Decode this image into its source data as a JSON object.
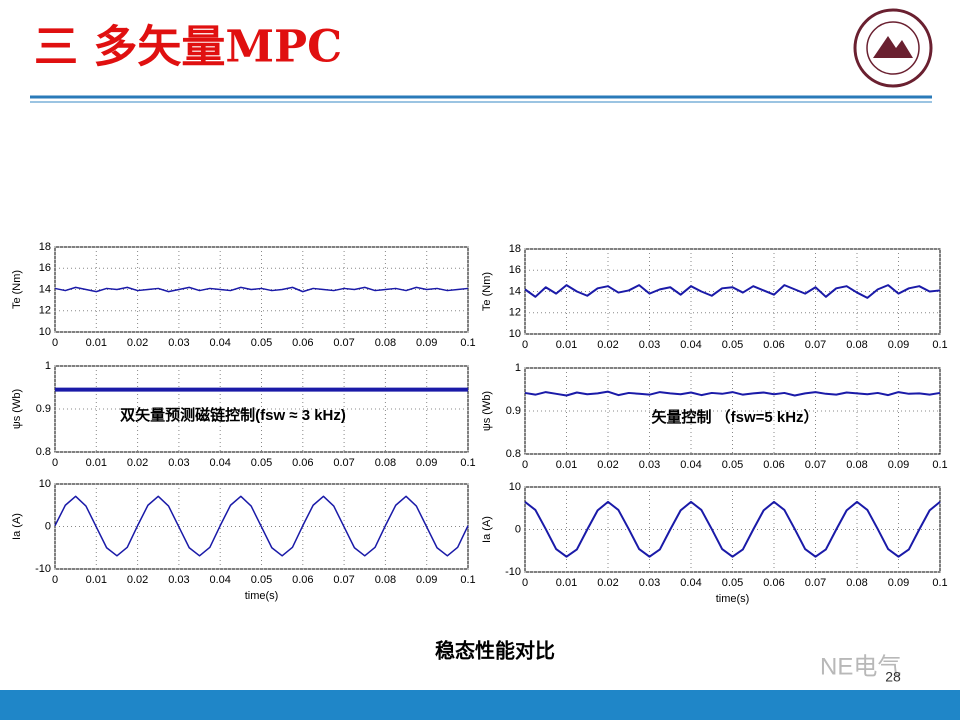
{
  "header": {
    "title": "三 多矢量MPC"
  },
  "caption": "稳态性能对比",
  "page_number": "28",
  "watermark": "NE电气",
  "chart_data": [
    {
      "type": "line",
      "ylabel": "Te (Nm)",
      "x": [
        0,
        0.0025,
        0.005,
        0.0075,
        0.01,
        0.0125,
        0.015,
        0.0175,
        0.02,
        0.0225,
        0.025,
        0.0275,
        0.03,
        0.0325,
        0.035,
        0.0375,
        0.04,
        0.0425,
        0.045,
        0.0475,
        0.05,
        0.0525,
        0.055,
        0.0575,
        0.06,
        0.0625,
        0.065,
        0.0675,
        0.07,
        0.0725,
        0.075,
        0.0775,
        0.08,
        0.0825,
        0.085,
        0.0875,
        0.09,
        0.0925,
        0.095,
        0.0975,
        0.1
      ],
      "series": [
        {
          "color": "#1a1aa8",
          "line_width": 1.5,
          "values": [
            14.1,
            13.9,
            14.2,
            14.0,
            13.8,
            14.1,
            14.0,
            14.2,
            13.9,
            14.0,
            14.1,
            13.8,
            14.0,
            14.2,
            13.9,
            14.1,
            14.0,
            13.9,
            14.2,
            14.0,
            14.1,
            13.9,
            14.0,
            14.2,
            13.8,
            14.1,
            14.0,
            13.9,
            14.1,
            14.0,
            14.2,
            13.9,
            14.0,
            14.1,
            13.9,
            14.2,
            14.0,
            14.1,
            13.9,
            14.0,
            14.1
          ]
        }
      ],
      "xlim": [
        0,
        0.1
      ],
      "xticks": [
        0,
        0.01,
        0.02,
        0.03,
        0.04,
        0.05,
        0.06,
        0.07,
        0.08,
        0.09,
        0.1
      ],
      "ylim": [
        10,
        18
      ],
      "yticks": [
        10,
        12,
        14,
        16,
        18
      ],
      "grid": true
    },
    {
      "type": "line",
      "ylabel": "ψs (Wb)",
      "annotation": "双矢量预测磁链控制(fsw ≈ 3 kHz)",
      "x": [
        0,
        0.0025,
        0.005,
        0.0075,
        0.01,
        0.0125,
        0.015,
        0.0175,
        0.02,
        0.0225,
        0.025,
        0.0275,
        0.03,
        0.0325,
        0.035,
        0.0375,
        0.04,
        0.0425,
        0.045,
        0.0475,
        0.05,
        0.0525,
        0.055,
        0.0575,
        0.06,
        0.0625,
        0.065,
        0.0675,
        0.07,
        0.0725,
        0.075,
        0.0775,
        0.08,
        0.0825,
        0.085,
        0.0875,
        0.09,
        0.0925,
        0.095,
        0.0975,
        0.1
      ],
      "series": [
        {
          "color": "#1a1aa8",
          "line_width": 4,
          "values": [
            0.945,
            0.945,
            0.945,
            0.945,
            0.945,
            0.945,
            0.945,
            0.945,
            0.945,
            0.945,
            0.945,
            0.945,
            0.945,
            0.945,
            0.945,
            0.945,
            0.945,
            0.945,
            0.945,
            0.945,
            0.945,
            0.945,
            0.945,
            0.945,
            0.945,
            0.945,
            0.945,
            0.945,
            0.945,
            0.945,
            0.945,
            0.945,
            0.945,
            0.945,
            0.945,
            0.945,
            0.945,
            0.945,
            0.945,
            0.945,
            0.945
          ]
        }
      ],
      "xlim": [
        0,
        0.1
      ],
      "xticks": [
        0,
        0.01,
        0.02,
        0.03,
        0.04,
        0.05,
        0.06,
        0.07,
        0.08,
        0.09,
        0.1
      ],
      "ylim": [
        0.8,
        1
      ],
      "yticks": [
        0.8,
        0.9,
        1
      ],
      "grid": true
    },
    {
      "type": "line",
      "ylabel": "Ia (A)",
      "xlabel": "time(s)",
      "x": [
        0,
        0.0025,
        0.005,
        0.0075,
        0.01,
        0.0125,
        0.015,
        0.0175,
        0.02,
        0.0225,
        0.025,
        0.0275,
        0.03,
        0.0325,
        0.035,
        0.0375,
        0.04,
        0.0425,
        0.045,
        0.0475,
        0.05,
        0.0525,
        0.055,
        0.0575,
        0.06,
        0.0625,
        0.065,
        0.0675,
        0.07,
        0.0725,
        0.075,
        0.0775,
        0.08,
        0.0825,
        0.085,
        0.0875,
        0.09,
        0.0925,
        0.095,
        0.0975,
        0.1
      ],
      "series": [
        {
          "color": "#1a1aa8",
          "line_width": 1.5,
          "values": [
            0.2,
            5.0,
            7.1,
            4.8,
            -0.1,
            -5.0,
            -6.9,
            -4.9,
            0.2,
            5.0,
            7.1,
            4.8,
            -0.1,
            -5.0,
            -6.9,
            -4.9,
            0.2,
            5.0,
            7.1,
            4.8,
            -0.1,
            -5.0,
            -6.9,
            -4.9,
            0.2,
            5.0,
            7.1,
            4.8,
            -0.1,
            -5.0,
            -6.9,
            -4.9,
            0.2,
            5.0,
            7.1,
            4.8,
            -0.1,
            -5.0,
            -6.9,
            -4.9,
            0.2
          ]
        }
      ],
      "xlim": [
        0,
        0.1
      ],
      "xticks": [
        0,
        0.01,
        0.02,
        0.03,
        0.04,
        0.05,
        0.06,
        0.07,
        0.08,
        0.09,
        0.1
      ],
      "ylim": [
        -10,
        10
      ],
      "yticks": [
        -10,
        0,
        10
      ],
      "grid": true
    },
    {
      "type": "line",
      "ylabel": "Te (Nm)",
      "x": [
        0,
        0.0025,
        0.005,
        0.0075,
        0.01,
        0.0125,
        0.015,
        0.0175,
        0.02,
        0.0225,
        0.025,
        0.0275,
        0.03,
        0.0325,
        0.035,
        0.0375,
        0.04,
        0.0425,
        0.045,
        0.0475,
        0.05,
        0.0525,
        0.055,
        0.0575,
        0.06,
        0.0625,
        0.065,
        0.0675,
        0.07,
        0.0725,
        0.075,
        0.0775,
        0.08,
        0.0825,
        0.085,
        0.0875,
        0.09,
        0.0925,
        0.095,
        0.0975,
        0.1
      ],
      "series": [
        {
          "color": "#1a1aa8",
          "line_width": 2,
          "values": [
            14.2,
            13.5,
            14.4,
            13.8,
            14.6,
            14.0,
            13.6,
            14.3,
            14.5,
            13.9,
            14.1,
            14.6,
            13.8,
            14.2,
            14.4,
            13.7,
            14.5,
            14.0,
            13.6,
            14.3,
            14.4,
            13.9,
            14.5,
            14.1,
            13.7,
            14.6,
            14.2,
            13.8,
            14.4,
            13.5,
            14.3,
            14.5,
            13.9,
            13.4,
            14.2,
            14.6,
            13.8,
            14.3,
            14.5,
            14.0,
            14.1
          ]
        }
      ],
      "xlim": [
        0,
        0.1
      ],
      "xticks": [
        0,
        0.01,
        0.02,
        0.03,
        0.04,
        0.05,
        0.06,
        0.07,
        0.08,
        0.09,
        0.1
      ],
      "ylim": [
        10,
        18
      ],
      "yticks": [
        10,
        12,
        14,
        16,
        18
      ],
      "grid": true
    },
    {
      "type": "line",
      "ylabel": "ψs (Wb)",
      "annotation": "矢量控制 （fsw=5 kHz）",
      "x": [
        0,
        0.0025,
        0.005,
        0.0075,
        0.01,
        0.0125,
        0.015,
        0.0175,
        0.02,
        0.0225,
        0.025,
        0.0275,
        0.03,
        0.0325,
        0.035,
        0.0375,
        0.04,
        0.0425,
        0.045,
        0.0475,
        0.05,
        0.0525,
        0.055,
        0.0575,
        0.06,
        0.0625,
        0.065,
        0.0675,
        0.07,
        0.0725,
        0.075,
        0.0775,
        0.08,
        0.0825,
        0.085,
        0.0875,
        0.09,
        0.0925,
        0.095,
        0.0975,
        0.1
      ],
      "series": [
        {
          "color": "#1a1aa8",
          "line_width": 2,
          "values": [
            0.942,
            0.938,
            0.944,
            0.94,
            0.936,
            0.943,
            0.939,
            0.941,
            0.945,
            0.937,
            0.942,
            0.94,
            0.938,
            0.944,
            0.941,
            0.939,
            0.943,
            0.937,
            0.942,
            0.94,
            0.944,
            0.938,
            0.941,
            0.943,
            0.939,
            0.942,
            0.936,
            0.941,
            0.944,
            0.94,
            0.938,
            0.943,
            0.941,
            0.939,
            0.942,
            0.937,
            0.944,
            0.94,
            0.941,
            0.938,
            0.942
          ]
        }
      ],
      "xlim": [
        0,
        0.1
      ],
      "xticks": [
        0,
        0.01,
        0.02,
        0.03,
        0.04,
        0.05,
        0.06,
        0.07,
        0.08,
        0.09,
        0.1
      ],
      "ylim": [
        0.8,
        1
      ],
      "yticks": [
        0.8,
        0.9,
        1
      ],
      "grid": true
    },
    {
      "type": "line",
      "ylabel": "Ia (A)",
      "xlabel": "time(s)",
      "x": [
        0,
        0.0025,
        0.005,
        0.0075,
        0.01,
        0.0125,
        0.015,
        0.0175,
        0.02,
        0.0225,
        0.025,
        0.0275,
        0.03,
        0.0325,
        0.035,
        0.0375,
        0.04,
        0.0425,
        0.045,
        0.0475,
        0.05,
        0.0525,
        0.055,
        0.0575,
        0.06,
        0.0625,
        0.065,
        0.0675,
        0.07,
        0.0725,
        0.075,
        0.0775,
        0.08,
        0.0825,
        0.085,
        0.0875,
        0.09,
        0.0925,
        0.095,
        0.0975,
        0.1
      ],
      "series": [
        {
          "color": "#1a1aa8",
          "line_width": 2,
          "values": [
            6.5,
            4.6,
            0.1,
            -4.6,
            -6.4,
            -4.7,
            0,
            4.5,
            6.5,
            4.6,
            0.1,
            -4.6,
            -6.4,
            -4.7,
            0,
            4.5,
            6.5,
            4.6,
            0.1,
            -4.6,
            -6.4,
            -4.7,
            0,
            4.5,
            6.5,
            4.6,
            0.1,
            -4.6,
            -6.4,
            -4.7,
            0,
            4.5,
            6.5,
            4.6,
            0.1,
            -4.6,
            -6.4,
            -4.7,
            0,
            4.5,
            6.5
          ]
        }
      ],
      "xlim": [
        0,
        0.1
      ],
      "xticks": [
        0,
        0.01,
        0.02,
        0.03,
        0.04,
        0.05,
        0.06,
        0.07,
        0.08,
        0.09,
        0.1
      ],
      "ylim": [
        -10,
        10
      ],
      "yticks": [
        -10,
        0,
        10
      ],
      "grid": true
    }
  ]
}
